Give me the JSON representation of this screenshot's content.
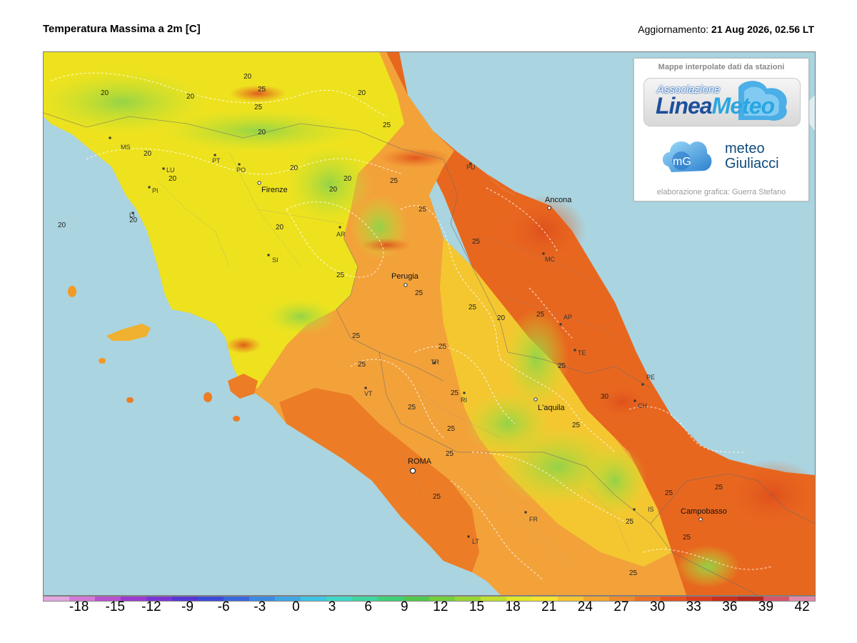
{
  "header": {
    "title": "Temperatura Massima a 2m [C]",
    "updated_label": "Aggiornamento:",
    "updated_value": "21 Aug 2026, 02.56 LT"
  },
  "panel": {
    "heading": "Mappe interpolate dati da stazioni",
    "lineameteo_top": "Associazione",
    "lineameteo_a": "Linea",
    "lineameteo_b": "Meteo",
    "mg_initials": "mG",
    "mg_word1": "meteo",
    "mg_word2": "Giuliacci",
    "credit": "elaborazione grafica: Guerra Stefano"
  },
  "colorbar": {
    "ticks": [
      "-18",
      "-15",
      "-12",
      "-9",
      "-6",
      "-3",
      "0",
      "3",
      "6",
      "9",
      "12",
      "15",
      "18",
      "21",
      "24",
      "27",
      "30",
      "33",
      "36",
      "39",
      "42"
    ],
    "min": -21,
    "max": 43,
    "colors": [
      "#e3a6e0",
      "#d37ad8",
      "#b651cf",
      "#9b3bd0",
      "#7a36d4",
      "#5637d6",
      "#3c4bd8",
      "#3a68dc",
      "#3d8ae0",
      "#3fa7e2",
      "#3fc5e2",
      "#3fd8c8",
      "#3fd6a1",
      "#3fcf78",
      "#4fc84d",
      "#73d03c",
      "#9ad635",
      "#c2e02e",
      "#e2e82a",
      "#f6e22e",
      "#f6c530",
      "#f3a52e",
      "#ef8a2a",
      "#eb6f26",
      "#e55322",
      "#db3d1f",
      "#cc2e1c",
      "#b8271b",
      "#d6566a",
      "#e08aa7"
    ]
  },
  "cities": [
    {
      "name": "Firenze",
      "kind": "city"
    },
    {
      "name": "Perugia",
      "kind": "city"
    },
    {
      "name": "Ancona",
      "kind": "city"
    },
    {
      "name": "L'aquila",
      "kind": "city"
    },
    {
      "name": "ROMA",
      "kind": "capital"
    },
    {
      "name": "Campobasso",
      "kind": "city"
    }
  ],
  "provinces": [
    "MS",
    "LU",
    "PT",
    "PO",
    "PI",
    "LI",
    "AR",
    "SI",
    "PU",
    "MC",
    "AP",
    "TE",
    "PE",
    "CH",
    "TR",
    "RI",
    "VT",
    "IS",
    "FR",
    "LT"
  ],
  "contours": [
    "20",
    "20",
    "20",
    "20",
    "20",
    "20",
    "20",
    "20",
    "20",
    "20",
    "20",
    "20",
    "20",
    "20",
    "25",
    "25",
    "25",
    "25",
    "25",
    "25",
    "25",
    "25",
    "25",
    "25",
    "25",
    "25",
    "25",
    "25",
    "25",
    "25",
    "25",
    "25",
    "25",
    "25",
    "25",
    "25",
    "25",
    "25",
    "25",
    "30"
  ],
  "colors": {
    "sea": "#aad4e0",
    "dark_orange": "#e8671f",
    "orange": "#f39a26",
    "yellow": "#f1e21e",
    "lime": "#c9e22b",
    "green": "#8fd34a"
  }
}
